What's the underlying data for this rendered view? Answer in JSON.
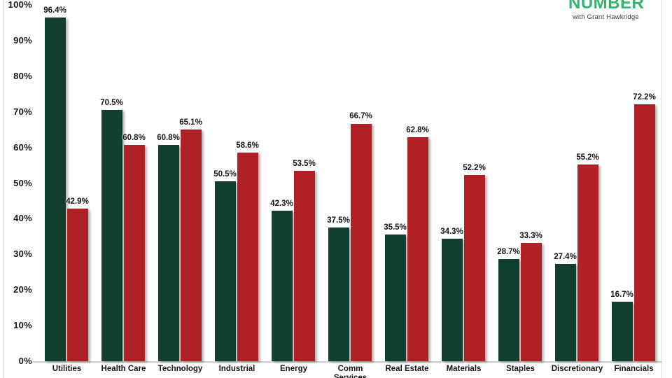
{
  "logo": {
    "word": "NUMBER",
    "tagline": "with Grant Hawkridge",
    "color": "#2fb56d"
  },
  "colors": {
    "bar_green": "#11402f",
    "bar_red": "#b02125",
    "axis_line": "#cccccc",
    "edge_line": "#d9d9d9"
  },
  "chart_data": {
    "type": "bar",
    "title": "",
    "xlabel": "",
    "ylabel": "",
    "categories": [
      "Utilities",
      "Health Care",
      "Technology",
      "Industrial",
      "Energy",
      "Comm\nServices",
      "Real Estate",
      "Materials",
      "Staples",
      "Discretionary",
      "Financials"
    ],
    "series": [
      {
        "name": "green-series",
        "color": "#11402f",
        "values": [
          96.4,
          70.5,
          60.8,
          50.5,
          42.3,
          37.5,
          35.5,
          34.3,
          28.7,
          27.4,
          16.7
        ]
      },
      {
        "name": "red-series",
        "color": "#b02125",
        "values": [
          42.9,
          60.8,
          65.1,
          58.6,
          53.5,
          66.7,
          62.8,
          52.2,
          33.3,
          55.2,
          72.2
        ]
      }
    ],
    "value_label_suffix": "%",
    "y_ticks": [
      "0%",
      "10%",
      "20%",
      "30%",
      "40%",
      "50%",
      "60%",
      "70%",
      "80%",
      "90%",
      "100%"
    ],
    "ylim": [
      0,
      100
    ],
    "grid": false,
    "legend": "none"
  }
}
